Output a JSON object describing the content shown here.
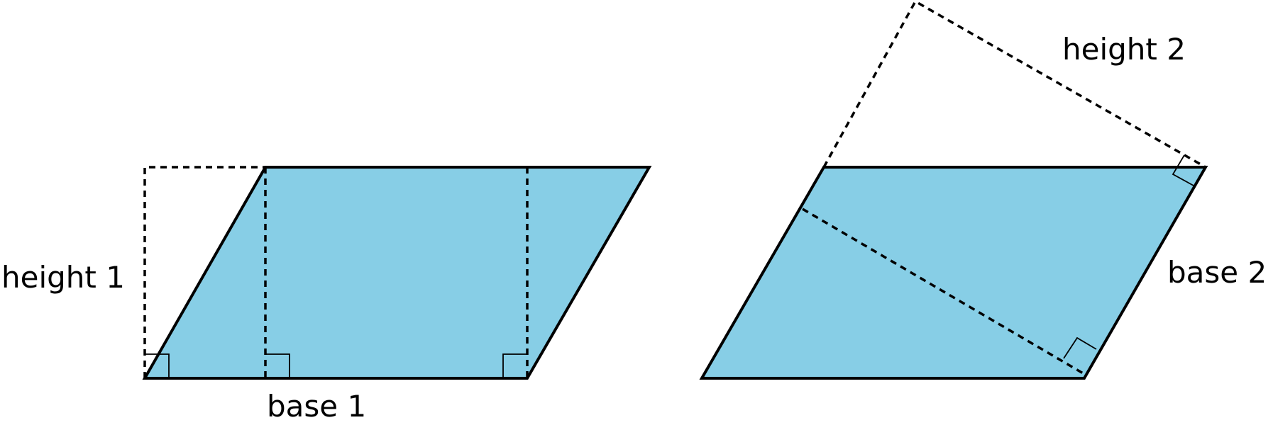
{
  "colors": {
    "fill": "#87CEE6",
    "stroke": "#000000"
  },
  "figure_1": {
    "height_label": "height 1",
    "base_label": "base 1"
  },
  "figure_2": {
    "height_label": "height 2",
    "base_label": "base 2"
  }
}
